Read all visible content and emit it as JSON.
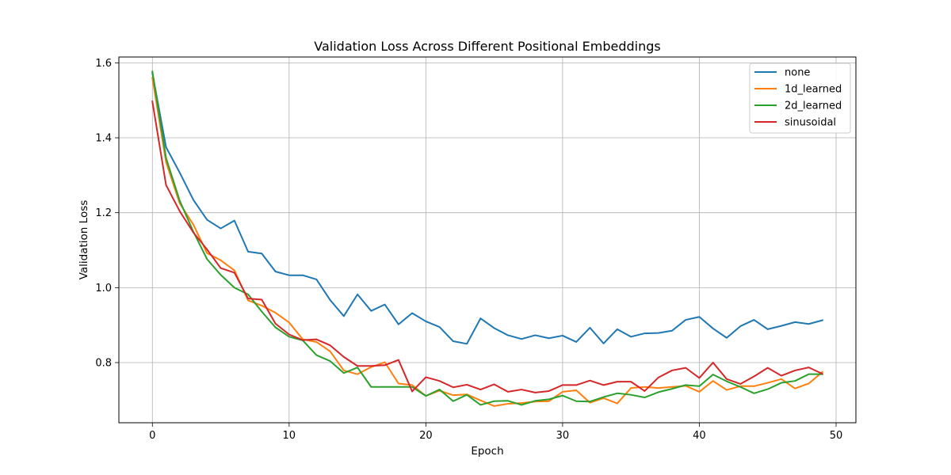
{
  "chart_data": {
    "type": "line",
    "title": "Validation Loss Across Different Positional Embeddings",
    "xlabel": "Epoch",
    "ylabel": "Validation Loss",
    "xlim": [
      -2.45,
      51.45
    ],
    "ylim": [
      0.6394,
      1.6156
    ],
    "xticks": [
      0,
      10,
      20,
      30,
      40,
      50
    ],
    "yticks": [
      0.8,
      1.0,
      1.2,
      1.4,
      1.6
    ],
    "xtick_labels": [
      "0",
      "10",
      "20",
      "30",
      "40",
      "50"
    ],
    "ytick_labels": [
      "0.8",
      "1.0",
      "1.2",
      "1.4",
      "1.6"
    ],
    "grid": true,
    "legend_position": "top-right",
    "x": [
      0,
      1,
      2,
      3,
      4,
      5,
      6,
      7,
      8,
      9,
      10,
      11,
      12,
      13,
      14,
      15,
      16,
      17,
      18,
      19,
      20,
      21,
      22,
      23,
      24,
      25,
      26,
      27,
      28,
      29,
      30,
      31,
      32,
      33,
      34,
      35,
      36,
      37,
      38,
      39,
      40,
      41,
      42,
      43,
      44,
      45,
      46,
      47,
      48,
      49
    ],
    "series": [
      {
        "name": "none",
        "color": "#1f77b4",
        "values": [
          1.573,
          1.375,
          1.307,
          1.234,
          1.181,
          1.158,
          1.179,
          1.096,
          1.091,
          1.043,
          1.033,
          1.033,
          1.022,
          0.967,
          0.924,
          0.982,
          0.938,
          0.955,
          0.902,
          0.932,
          0.91,
          0.895,
          0.857,
          0.85,
          0.918,
          0.892,
          0.873,
          0.863,
          0.873,
          0.865,
          0.872,
          0.855,
          0.893,
          0.851,
          0.889,
          0.869,
          0.878,
          0.879,
          0.885,
          0.914,
          0.922,
          0.891,
          0.866,
          0.897,
          0.914,
          0.889,
          0.898,
          0.908,
          0.903,
          0.913
        ]
      },
      {
        "name": "1d_learned",
        "color": "#ff7f0e",
        "values": [
          1.56,
          1.335,
          1.225,
          1.168,
          1.092,
          1.073,
          1.046,
          0.966,
          0.952,
          0.933,
          0.907,
          0.862,
          0.855,
          0.83,
          0.779,
          0.769,
          0.788,
          0.801,
          0.744,
          0.74,
          0.711,
          0.725,
          0.713,
          0.715,
          0.699,
          0.684,
          0.69,
          0.692,
          0.696,
          0.697,
          0.722,
          0.726,
          0.693,
          0.705,
          0.691,
          0.732,
          0.735,
          0.732,
          0.735,
          0.738,
          0.722,
          0.751,
          0.727,
          0.737,
          0.737,
          0.746,
          0.756,
          0.731,
          0.744,
          0.775
        ]
      },
      {
        "name": "2d_learned",
        "color": "#2ca02c",
        "values": [
          1.577,
          1.346,
          1.232,
          1.149,
          1.076,
          1.034,
          1.0,
          0.982,
          0.936,
          0.894,
          0.869,
          0.859,
          0.82,
          0.804,
          0.772,
          0.787,
          0.735,
          0.735,
          0.735,
          0.735,
          0.711,
          0.728,
          0.697,
          0.714,
          0.687,
          0.697,
          0.698,
          0.687,
          0.698,
          0.702,
          0.712,
          0.697,
          0.696,
          0.708,
          0.718,
          0.714,
          0.707,
          0.721,
          0.73,
          0.74,
          0.737,
          0.768,
          0.75,
          0.735,
          0.718,
          0.729,
          0.746,
          0.751,
          0.769,
          0.769
        ]
      },
      {
        "name": "sinusoidal",
        "color": "#d62728",
        "values": [
          1.497,
          1.274,
          1.204,
          1.147,
          1.102,
          1.052,
          1.04,
          0.971,
          0.968,
          0.904,
          0.875,
          0.86,
          0.862,
          0.846,
          0.815,
          0.791,
          0.791,
          0.793,
          0.807,
          0.723,
          0.761,
          0.751,
          0.734,
          0.741,
          0.728,
          0.742,
          0.722,
          0.728,
          0.72,
          0.724,
          0.74,
          0.74,
          0.752,
          0.74,
          0.749,
          0.749,
          0.724,
          0.76,
          0.779,
          0.786,
          0.759,
          0.8,
          0.756,
          0.743,
          0.763,
          0.786,
          0.765,
          0.779,
          0.787,
          0.77
        ]
      }
    ]
  }
}
